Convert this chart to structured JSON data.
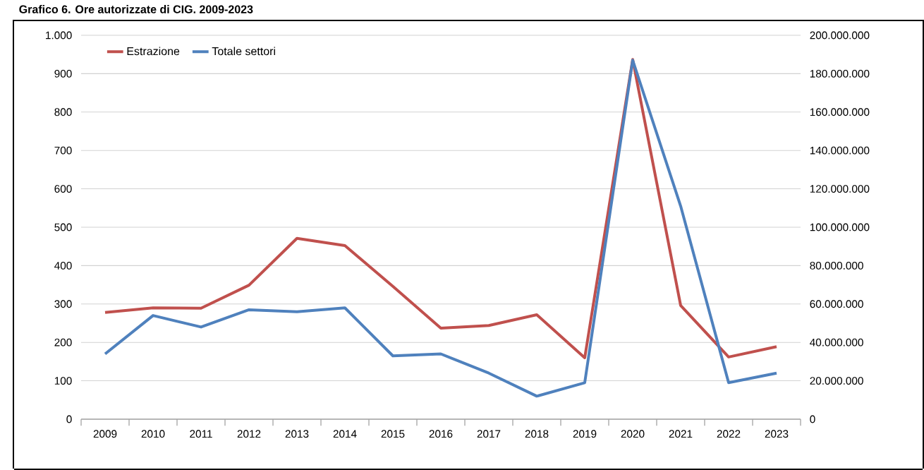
{
  "chart_data": {
    "type": "line",
    "title": "Grafico 6. Ore autorizzate di CIG. 2009-2023",
    "categories": [
      "2009",
      "2010",
      "2011",
      "2012",
      "2013",
      "2014",
      "2015",
      "2016",
      "2017",
      "2018",
      "2019",
      "2020",
      "2021",
      "2022",
      "2023"
    ],
    "series": [
      {
        "name": "Estrazione",
        "color": "#c0504d",
        "values": [
          278,
          290,
          289,
          349,
          471,
          452,
          346,
          237,
          244,
          272,
          160,
          937,
          296,
          162,
          189
        ]
      },
      {
        "name": "Totale settori",
        "color": "#4f81bd",
        "axis": "y2",
        "values": [
          34000000,
          54000000,
          48000000,
          57000000,
          56000000,
          58000000,
          33000000,
          34000000,
          24000000,
          12000000,
          19000000,
          187000000,
          111000000,
          19000000,
          24000000
        ]
      }
    ],
    "ylim": [
      0,
      1000
    ],
    "yticks": [
      0,
      100,
      200,
      300,
      400,
      500,
      600,
      700,
      800,
      900,
      {
        "value": 1000,
        "label": "1.000"
      }
    ],
    "y2lim": [
      0,
      200000000
    ],
    "y2ticks": [
      0,
      {
        "value": 20000000,
        "label": "20.000.000"
      },
      {
        "value": 40000000,
        "label": "40.000.000"
      },
      {
        "value": 60000000,
        "label": "60.000.000"
      },
      {
        "value": 80000000,
        "label": "80.000.000"
      },
      {
        "value": 100000000,
        "label": "100.000.000"
      },
      {
        "value": 120000000,
        "label": "120.000.000"
      },
      {
        "value": 140000000,
        "label": "140.000.000"
      },
      {
        "value": 160000000,
        "label": "160.000.000"
      },
      {
        "value": 180000000,
        "label": "180.000.000"
      },
      {
        "value": 200000000,
        "label": "200.000.000"
      }
    ],
    "grid": "y",
    "legend": "top left",
    "marker": "none",
    "line_style": "solid"
  }
}
